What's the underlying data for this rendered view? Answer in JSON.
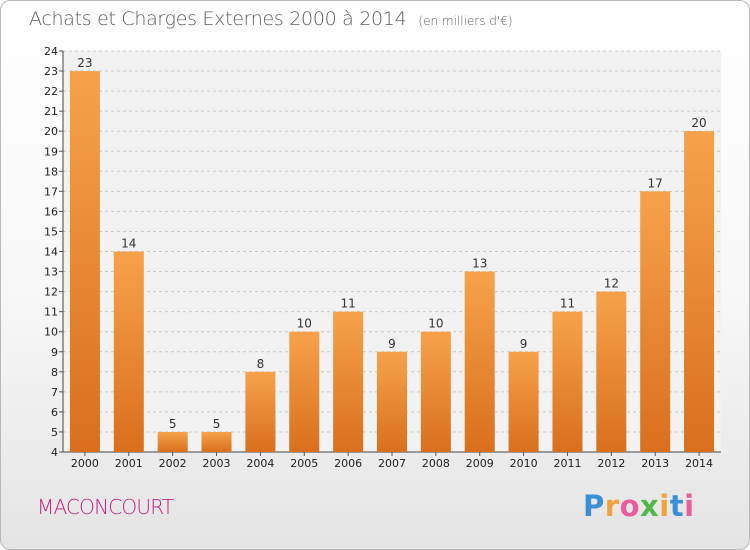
{
  "header": {
    "title": "Achats et Charges Externes 2000 à 2014",
    "unit": "(en milliers d'€)"
  },
  "footer": {
    "commune": "MACONCOURT",
    "logo_letters": [
      "P",
      "r",
      "o",
      "x",
      "i",
      "t",
      "i"
    ],
    "logo_colors": [
      "#3b8fd6",
      "#f2a23a",
      "#e85d9a",
      "#4fb848",
      "#f2a23a",
      "#3b8fd6",
      "#e85d9a"
    ]
  },
  "colors": {
    "bar_top": "#f7a24b",
    "bar_bottom": "#d96f1c",
    "commune": "#c81e7e"
  },
  "chart_data": {
    "type": "bar",
    "title": "Achats et Charges Externes 2000 à 2014",
    "categories": [
      "2000",
      "2001",
      "2002",
      "2003",
      "2004",
      "2005",
      "2006",
      "2007",
      "2008",
      "2009",
      "2010",
      "2011",
      "2012",
      "2013",
      "2014"
    ],
    "values": [
      23,
      14,
      5,
      5,
      8,
      10,
      11,
      9,
      10,
      13,
      9,
      11,
      12,
      17,
      20
    ],
    "ylim": [
      4,
      24
    ],
    "yticks": [
      4,
      5,
      6,
      7,
      8,
      9,
      10,
      11,
      12,
      13,
      14,
      15,
      16,
      17,
      18,
      19,
      20,
      21,
      22,
      23,
      24
    ],
    "xlabel": "",
    "ylabel": "",
    "grid": "horizontal-dashed",
    "legend": "none"
  }
}
